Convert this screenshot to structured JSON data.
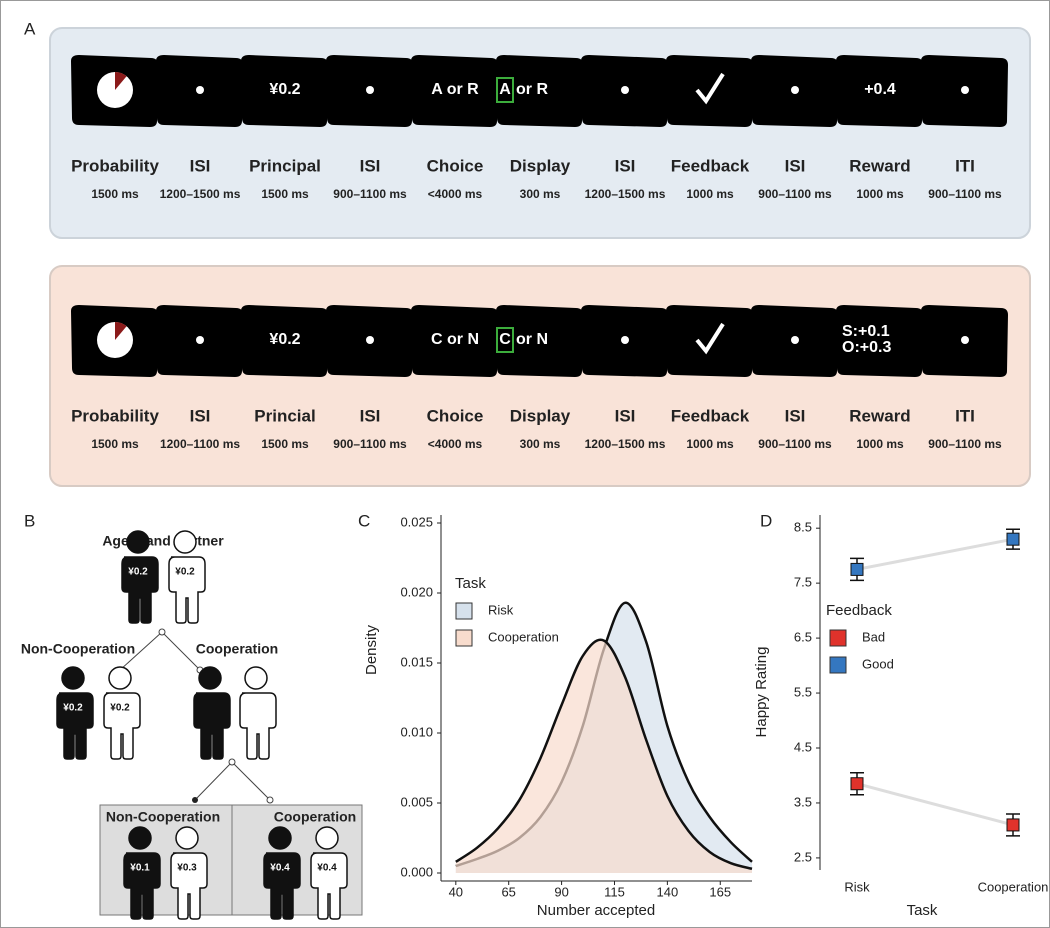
{
  "panel_a": {
    "label": "A",
    "rows": [
      {
        "screens": [
          null,
          null,
          "¥0.2",
          null,
          "A or R",
          {
            "boxed": "A",
            "text": "or R"
          },
          null,
          null,
          null,
          "+0.4",
          null
        ],
        "labels": [
          "Probability",
          "ISI",
          "Principal",
          "ISI",
          "Choice",
          "Display",
          "ISI",
          "Feedback",
          "ISI",
          "Reward",
          "ITI"
        ],
        "durations": [
          "1500 ms",
          "1200–1500 ms",
          "1500 ms",
          "900–1100 ms",
          "<4000 ms",
          "300 ms",
          "1200–1500 ms",
          "1000 ms",
          "900–1100 ms",
          "1000 ms",
          "900–1100 ms"
        ]
      },
      {
        "screens": [
          null,
          null,
          "¥0.2",
          null,
          "C or N",
          {
            "boxed": "C",
            "text": "or N"
          },
          null,
          null,
          null,
          {
            "lines": [
              "S:+0.1",
              "O:+0.3"
            ]
          },
          null
        ],
        "labels": [
          "Probability",
          "ISI",
          "Princial",
          "ISI",
          "Choice",
          "Display",
          "ISI",
          "Feedback",
          "ISI",
          "Reward",
          "ITI"
        ],
        "durations": [
          "1500 ms",
          "1200–1100 ms",
          "1500 ms",
          "900–1100 ms",
          "<4000 ms",
          "300 ms",
          "1200–1500 ms",
          "1000 ms",
          "900–1100 ms",
          "1000 ms",
          "900–1100 ms"
        ]
      }
    ]
  },
  "panel_b": {
    "label": "B",
    "title": "Agent and Partner",
    "left_branch": "Non-Cooperation",
    "right_branch": "Cooperation",
    "bottom_left": "Non-Cooperation",
    "bottom_right": "Cooperation",
    "amounts": {
      "top": [
        "¥0.2",
        "¥0.2"
      ],
      "middle": [
        "¥0.2",
        "¥0.2"
      ],
      "bottom_left": [
        "¥0.1",
        "¥0.3"
      ],
      "bottom_right": [
        "¥0.4",
        "¥0.4"
      ]
    }
  },
  "chart_data": [
    {
      "type": "area",
      "label": "C",
      "x_label": "Number accepted",
      "y_label": "Density",
      "x": [
        40,
        50,
        60,
        70,
        80,
        90,
        100,
        110,
        120,
        130,
        140,
        150,
        160,
        170,
        180
      ],
      "series": [
        {
          "name": "Risk",
          "color": "#d6e1ec",
          "values": [
            0.0005,
            0.001,
            0.0016,
            0.0025,
            0.004,
            0.0065,
            0.0105,
            0.016,
            0.0193,
            0.0165,
            0.0105,
            0.0065,
            0.004,
            0.0022,
            0.0008
          ]
        },
        {
          "name": "Cooperation",
          "color": "#f8dccd",
          "values": [
            0.0008,
            0.0018,
            0.0032,
            0.0052,
            0.0082,
            0.012,
            0.0155,
            0.0166,
            0.014,
            0.0095,
            0.0055,
            0.003,
            0.0015,
            0.0007,
            0.0003
          ]
        }
      ],
      "xlim": [
        33,
        180
      ],
      "ylim": [
        0,
        0.025
      ],
      "xticks": [
        40,
        65,
        90,
        115,
        140,
        165
      ],
      "yticks": [
        {
          "value": 0,
          "label": "0.000"
        },
        {
          "value": 0.005,
          "label": "0.005"
        },
        {
          "value": 0.01,
          "label": "0.010"
        },
        {
          "value": 0.015,
          "label": "0.015"
        },
        {
          "value": 0.02,
          "label": "0.020"
        },
        {
          "value": 0.025,
          "label": "0.025"
        }
      ],
      "legend_title": "Task",
      "legend": "top-left"
    },
    {
      "type": "scatter",
      "label": "D",
      "x_label": "Task",
      "y_label": "Happy Rating",
      "categories": [
        "Risk",
        "Cooperation"
      ],
      "series": [
        {
          "name": "Bad",
          "color": "#e0322b",
          "values": [
            3.85,
            3.1
          ],
          "errors": [
            0.2,
            0.2
          ]
        },
        {
          "name": "Good",
          "color": "#3477c0",
          "values": [
            7.75,
            8.3
          ],
          "errors": [
            0.2,
            0.18
          ]
        }
      ],
      "ylim": [
        2.28,
        8.74
      ],
      "yticks": [
        2.5,
        3.5,
        4.5,
        5.5,
        6.5,
        7.5,
        8.5
      ],
      "legend_title": "Feedback",
      "legend": "middle-left"
    }
  ]
}
